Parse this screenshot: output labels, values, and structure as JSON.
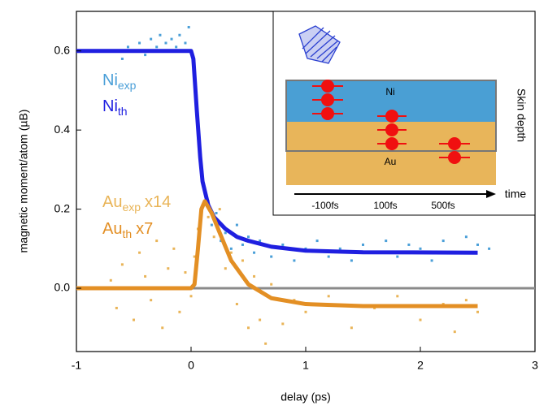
{
  "chart_data": {
    "type": "scatter",
    "x_label": "delay (ps)",
    "y_label": "magnetic moment/atom (µB)",
    "xlim": [
      -1,
      3
    ],
    "xticks": [
      -1,
      0,
      1,
      2,
      3
    ],
    "ylim": [
      -0.16,
      0.7
    ],
    "yticks": [
      {
        "value": 0,
        "label": "0.0"
      },
      {
        "value": 0.2,
        "label": "0.2"
      },
      {
        "value": 0.4,
        "label": "0.4"
      },
      {
        "value": 0.6,
        "label": "0.6"
      }
    ],
    "zero_line": true,
    "series": [
      {
        "name": "Ni",
        "name_sub": "exp",
        "style": "points",
        "color": "#4a9fd8",
        "x": [
          -0.6,
          -0.55,
          -0.5,
          -0.45,
          -0.4,
          -0.35,
          -0.3,
          -0.27,
          -0.22,
          -0.2,
          -0.17,
          -0.13,
          -0.1,
          -0.07,
          -0.05,
          -0.02,
          0.0,
          0.03,
          0.06,
          0.09,
          0.12,
          0.15,
          0.18,
          0.22,
          0.26,
          0.3,
          0.35,
          0.4,
          0.45,
          0.5,
          0.55,
          0.6,
          0.7,
          0.8,
          0.9,
          1.0,
          1.1,
          1.2,
          1.3,
          1.4,
          1.5,
          1.6,
          1.7,
          1.8,
          1.9,
          2.0,
          2.1,
          2.2,
          2.3,
          2.4,
          2.5,
          2.6
        ],
        "values": [
          0.58,
          0.61,
          0.6,
          0.62,
          0.59,
          0.63,
          0.61,
          0.64,
          0.62,
          0.6,
          0.63,
          0.61,
          0.64,
          0.6,
          0.62,
          0.66,
          0.6,
          0.55,
          0.43,
          0.3,
          0.24,
          0.22,
          0.16,
          0.19,
          0.12,
          0.14,
          0.1,
          0.16,
          0.11,
          0.13,
          0.09,
          0.12,
          0.08,
          0.11,
          0.07,
          0.1,
          0.12,
          0.08,
          0.1,
          0.07,
          0.11,
          0.09,
          0.12,
          0.08,
          0.11,
          0.1,
          0.07,
          0.12,
          0.09,
          0.13,
          0.11,
          0.1
        ]
      },
      {
        "name": "Ni",
        "name_sub": "th",
        "style": "line",
        "color": "#1f1fe0",
        "x": [
          -1,
          0,
          0.02,
          0.05,
          0.08,
          0.1,
          0.15,
          0.2,
          0.3,
          0.4,
          0.5,
          0.7,
          1.0,
          1.5,
          2.5
        ],
        "values": [
          0.6,
          0.6,
          0.58,
          0.45,
          0.33,
          0.27,
          0.21,
          0.18,
          0.15,
          0.13,
          0.12,
          0.105,
          0.095,
          0.091,
          0.09
        ]
      },
      {
        "name": "Au",
        "name_sub": "exp",
        "name_suffix": "x14",
        "style": "points",
        "color": "#e9b457",
        "x": [
          -0.7,
          -0.65,
          -0.6,
          -0.55,
          -0.5,
          -0.45,
          -0.4,
          -0.35,
          -0.3,
          -0.25,
          -0.2,
          -0.15,
          -0.1,
          -0.05,
          0.0,
          0.03,
          0.06,
          0.09,
          0.12,
          0.15,
          0.2,
          0.25,
          0.3,
          0.35,
          0.4,
          0.45,
          0.5,
          0.55,
          0.6,
          0.65,
          0.7,
          0.8,
          0.9,
          1.0,
          1.2,
          1.4,
          1.6,
          1.8,
          2.0,
          2.2,
          2.3,
          2.4,
          2.5
        ],
        "values": [
          0.02,
          -0.05,
          0.06,
          0.0,
          -0.08,
          0.09,
          0.03,
          -0.03,
          0.12,
          -0.1,
          0.05,
          0.1,
          -0.06,
          0.04,
          -0.02,
          0.08,
          0.15,
          0.2,
          0.24,
          0.18,
          0.13,
          0.2,
          0.05,
          0.09,
          -0.04,
          0.07,
          -0.1,
          0.03,
          -0.08,
          -0.14,
          0.01,
          -0.09,
          -0.03,
          -0.06,
          -0.02,
          -0.1,
          -0.05,
          -0.02,
          -0.08,
          -0.04,
          -0.11,
          -0.03,
          -0.06
        ]
      },
      {
        "name": "Au",
        "name_sub": "th",
        "name_suffix": "x7",
        "style": "line",
        "color": "#e38f24",
        "x": [
          -1,
          0,
          0.03,
          0.06,
          0.09,
          0.12,
          0.18,
          0.25,
          0.35,
          0.5,
          0.7,
          1.0,
          1.5,
          2.5
        ],
        "values": [
          0,
          0,
          0.01,
          0.1,
          0.2,
          0.22,
          0.19,
          0.14,
          0.07,
          0.01,
          -0.025,
          -0.04,
          -0.045,
          -0.045
        ]
      }
    ]
  },
  "inset": {
    "layers": [
      "Ni",
      "Au"
    ],
    "side_label": "Skin depth",
    "time_label": "time",
    "time_ticks": [
      "-100fs",
      "100fs",
      "500fs"
    ]
  }
}
